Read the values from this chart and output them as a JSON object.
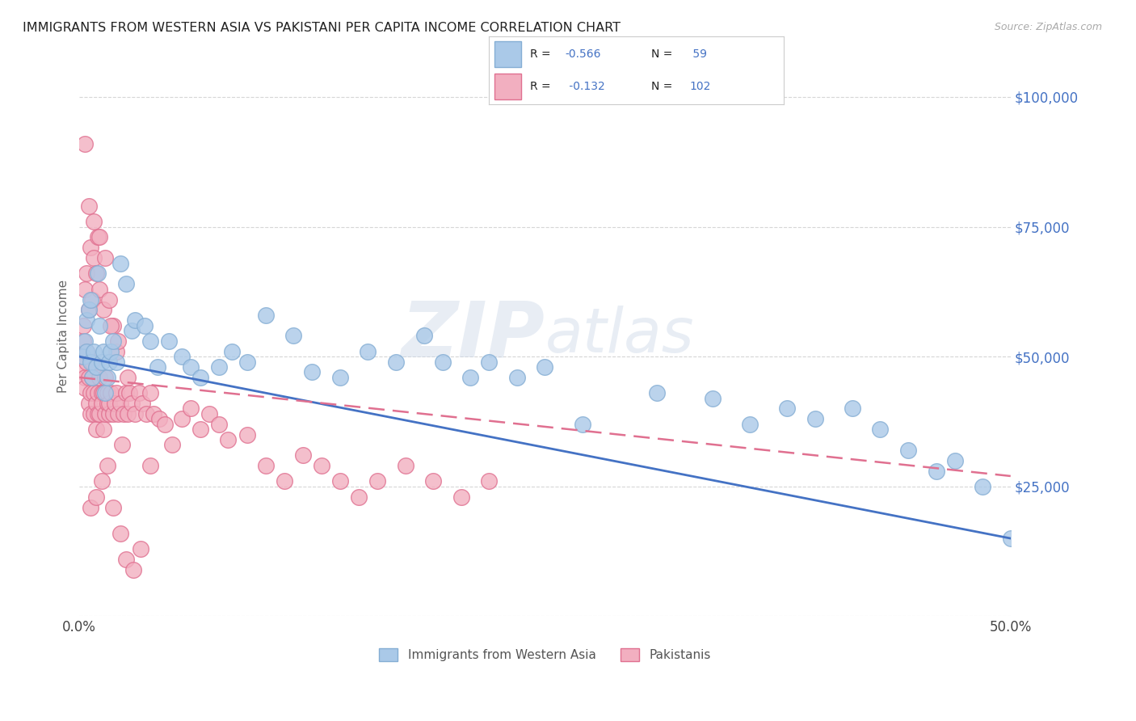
{
  "title": "IMMIGRANTS FROM WESTERN ASIA VS PAKISTANI PER CAPITA INCOME CORRELATION CHART",
  "source": "Source: ZipAtlas.com",
  "ylabel": "Per Capita Income",
  "xlim": [
    0.0,
    0.5
  ],
  "ylim": [
    0,
    108000
  ],
  "yticks_right": [
    25000,
    50000,
    75000,
    100000
  ],
  "ytick_labels_right": [
    "$25,000",
    "$50,000",
    "$75,000",
    "$100,000"
  ],
  "background_color": "#ffffff",
  "grid_color": "#cccccc",
  "series1_label": "Immigrants from Western Asia",
  "series1_color": "#aac9e8",
  "series1_edge": "#85aed4",
  "series1_R": -0.566,
  "series1_N": 59,
  "series2_label": "Pakistanis",
  "series2_color": "#f2afc0",
  "series2_edge": "#e07090",
  "series2_R": -0.132,
  "series2_N": 102,
  "series1_x": [
    0.002,
    0.003,
    0.004,
    0.004,
    0.005,
    0.006,
    0.006,
    0.007,
    0.008,
    0.009,
    0.01,
    0.011,
    0.012,
    0.013,
    0.014,
    0.015,
    0.016,
    0.017,
    0.018,
    0.02,
    0.022,
    0.025,
    0.028,
    0.03,
    0.035,
    0.038,
    0.042,
    0.048,
    0.055,
    0.06,
    0.065,
    0.075,
    0.082,
    0.09,
    0.1,
    0.115,
    0.125,
    0.14,
    0.155,
    0.17,
    0.185,
    0.195,
    0.21,
    0.22,
    0.235,
    0.25,
    0.27,
    0.31,
    0.34,
    0.36,
    0.38,
    0.395,
    0.415,
    0.43,
    0.445,
    0.46,
    0.47,
    0.485,
    0.5
  ],
  "series1_y": [
    50000,
    53000,
    51000,
    57000,
    59000,
    61000,
    49000,
    46000,
    51000,
    48000,
    66000,
    56000,
    49000,
    51000,
    43000,
    46000,
    49000,
    51000,
    53000,
    49000,
    68000,
    64000,
    55000,
    57000,
    56000,
    53000,
    48000,
    53000,
    50000,
    48000,
    46000,
    48000,
    51000,
    49000,
    58000,
    54000,
    47000,
    46000,
    51000,
    49000,
    54000,
    49000,
    46000,
    49000,
    46000,
    48000,
    37000,
    43000,
    42000,
    37000,
    40000,
    38000,
    40000,
    36000,
    32000,
    28000,
    30000,
    25000,
    15000
  ],
  "series2_x": [
    0.001,
    0.002,
    0.002,
    0.003,
    0.003,
    0.004,
    0.004,
    0.005,
    0.005,
    0.006,
    0.006,
    0.007,
    0.007,
    0.008,
    0.008,
    0.009,
    0.009,
    0.01,
    0.01,
    0.011,
    0.011,
    0.012,
    0.012,
    0.013,
    0.013,
    0.014,
    0.014,
    0.015,
    0.015,
    0.016,
    0.016,
    0.017,
    0.018,
    0.019,
    0.02,
    0.021,
    0.022,
    0.023,
    0.024,
    0.025,
    0.026,
    0.027,
    0.028,
    0.03,
    0.032,
    0.034,
    0.036,
    0.038,
    0.04,
    0.043,
    0.046,
    0.05,
    0.055,
    0.06,
    0.065,
    0.07,
    0.075,
    0.08,
    0.09,
    0.1,
    0.11,
    0.12,
    0.13,
    0.14,
    0.15,
    0.16,
    0.175,
    0.19,
    0.205,
    0.22,
    0.002,
    0.004,
    0.006,
    0.008,
    0.01,
    0.003,
    0.005,
    0.007,
    0.009,
    0.011,
    0.013,
    0.016,
    0.018,
    0.02,
    0.003,
    0.005,
    0.008,
    0.011,
    0.014,
    0.017,
    0.021,
    0.026,
    0.006,
    0.009,
    0.012,
    0.015,
    0.018,
    0.022,
    0.025,
    0.029,
    0.033,
    0.038
  ],
  "series2_y": [
    50000,
    53000,
    47000,
    46000,
    44000,
    49000,
    51000,
    46000,
    41000,
    43000,
    39000,
    46000,
    49000,
    43000,
    39000,
    41000,
    36000,
    39000,
    43000,
    46000,
    39000,
    43000,
    41000,
    36000,
    43000,
    39000,
    46000,
    41000,
    43000,
    39000,
    41000,
    43000,
    39000,
    41000,
    43000,
    39000,
    41000,
    33000,
    39000,
    43000,
    39000,
    43000,
    41000,
    39000,
    43000,
    41000,
    39000,
    43000,
    39000,
    38000,
    37000,
    33000,
    38000,
    40000,
    36000,
    39000,
    37000,
    34000,
    35000,
    29000,
    26000,
    31000,
    29000,
    26000,
    23000,
    26000,
    29000,
    26000,
    23000,
    26000,
    56000,
    66000,
    71000,
    69000,
    73000,
    63000,
    59000,
    61000,
    66000,
    63000,
    59000,
    61000,
    56000,
    51000,
    91000,
    79000,
    76000,
    73000,
    69000,
    56000,
    53000,
    46000,
    21000,
    23000,
    26000,
    29000,
    21000,
    16000,
    11000,
    9000,
    13000,
    29000
  ],
  "line1_x0": 0.0,
  "line1_y0": 50000,
  "line1_x1": 0.5,
  "line1_y1": 15000,
  "line2_x0": 0.0,
  "line2_y0": 46000,
  "line2_x1": 0.5,
  "line2_y1": 27000
}
